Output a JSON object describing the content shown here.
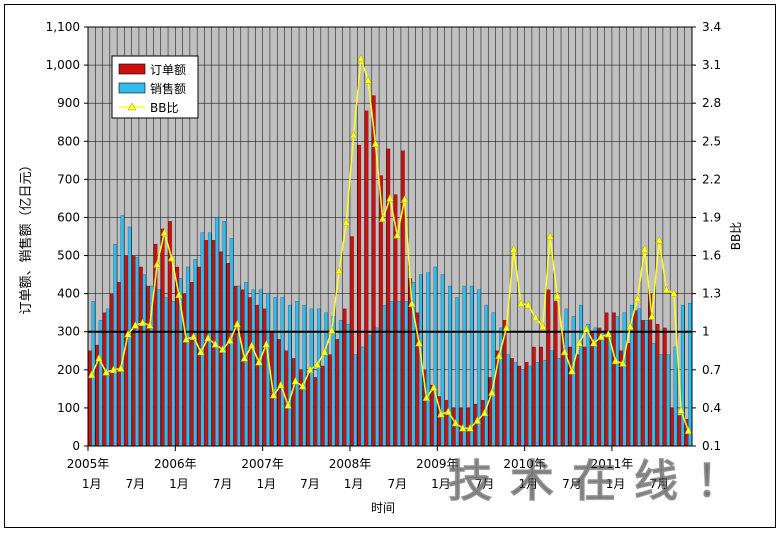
{
  "chart_data": {
    "type": "bar",
    "xlabel": "时间",
    "ylabel_left": "订单额、销售额（亿日元）",
    "ylabel_right": "BB比",
    "ylim_left": [
      0,
      1100
    ],
    "ylim_right": [
      0.1,
      3.4
    ],
    "yticks_left": [
      "0",
      "100",
      "200",
      "300",
      "400",
      "500",
      "600",
      "700",
      "800",
      "900",
      "1,000",
      "1,100"
    ],
    "yticks_right": [
      "0.1",
      "0.4",
      "0.7",
      "1",
      "1.3",
      "1.6",
      "1.9",
      "2.2",
      "2.5",
      "2.8",
      "3.1",
      "3.4"
    ],
    "grid": true,
    "legend_position": "top-left",
    "reference_line": {
      "axis": "right",
      "value": 1
    },
    "x_year_labels": [
      {
        "index": 0,
        "label": "2005年"
      },
      {
        "index": 12,
        "label": "2006年"
      },
      {
        "index": 24,
        "label": "2007年"
      },
      {
        "index": 36,
        "label": "2008年"
      },
      {
        "index": 48,
        "label": "2009年"
      },
      {
        "index": 60,
        "label": "2010年"
      },
      {
        "index": 72,
        "label": "2011年"
      }
    ],
    "x_month_labels": [
      {
        "index": 0,
        "label": "1月"
      },
      {
        "index": 6,
        "label": "7月"
      },
      {
        "index": 12,
        "label": "1月"
      },
      {
        "index": 18,
        "label": "7月"
      },
      {
        "index": 24,
        "label": "1月"
      },
      {
        "index": 30,
        "label": "7月"
      },
      {
        "index": 36,
        "label": "1月"
      },
      {
        "index": 42,
        "label": "7月"
      },
      {
        "index": 48,
        "label": "1月"
      },
      {
        "index": 54,
        "label": "7月"
      },
      {
        "index": 60,
        "label": "1月"
      },
      {
        "index": 66,
        "label": "7月"
      },
      {
        "index": 72,
        "label": "1月"
      },
      {
        "index": 78,
        "label": "7月"
      }
    ],
    "series": [
      {
        "name": "订单额",
        "axis": "left",
        "color": "#cc1111",
        "values": [
          250,
          265,
          350,
          400,
          430,
          500,
          500,
          470,
          420,
          530,
          570,
          590,
          470,
          400,
          430,
          470,
          540,
          540,
          510,
          480,
          420,
          410,
          390,
          370,
          360,
          300,
          280,
          250,
          230,
          200,
          190,
          180,
          210,
          240,
          280,
          360,
          550,
          790,
          880,
          920,
          710,
          780,
          660,
          775,
          440,
          350,
          200,
          160,
          130,
          120,
          100,
          100,
          100,
          110,
          120,
          180,
          250,
          330,
          230,
          210,
          220,
          260,
          260,
          410,
          380,
          300,
          260,
          240,
          260,
          300,
          310,
          350,
          350,
          250,
          270,
          355,
          330,
          400,
          320,
          310,
          100,
          80,
          70
        ]
      },
      {
        "name": "销售额",
        "axis": "left",
        "color": "#33bbee",
        "values": [
          380,
          330,
          360,
          530,
          605,
          575,
          495,
          450,
          420,
          410,
          390,
          380,
          440,
          470,
          490,
          560,
          560,
          600,
          590,
          545,
          420,
          430,
          410,
          410,
          400,
          390,
          390,
          370,
          380,
          370,
          360,
          360,
          350,
          340,
          330,
          320,
          240,
          260,
          290,
          310,
          370,
          380,
          380,
          380,
          430,
          450,
          455,
          470,
          450,
          420,
          390,
          420,
          420,
          410,
          370,
          350,
          310,
          240,
          220,
          200,
          210,
          220,
          225,
          250,
          230,
          360,
          340,
          370,
          320,
          310,
          300,
          300,
          340,
          350,
          370,
          360,
          330,
          270,
          240,
          240,
          260,
          370,
          375
        ]
      },
      {
        "name": "BB比",
        "axis": "right",
        "color": "#ffff22",
        "values": [
          0.66,
          0.79,
          0.68,
          0.7,
          0.71,
          0.98,
          1.05,
          1.07,
          1.05,
          1.53,
          1.78,
          1.58,
          1.29,
          0.94,
          0.96,
          0.84,
          0.95,
          0.9,
          0.86,
          0.93,
          1.06,
          0.79,
          0.89,
          0.76,
          0.9,
          0.5,
          0.58,
          0.42,
          0.61,
          0.57,
          0.7,
          0.74,
          0.84,
          1.01,
          1.48,
          1.86,
          2.55,
          3.15,
          2.98,
          2.48,
          1.89,
          2.05,
          1.76,
          2.04,
          1.22,
          0.91,
          0.48,
          0.56,
          0.35,
          0.37,
          0.28,
          0.24,
          0.24,
          0.3,
          0.36,
          0.52,
          0.81,
          1.03,
          1.65,
          1.22,
          1.21,
          1.11,
          1.04,
          1.75,
          1.28,
          0.84,
          0.69,
          0.91,
          1.02,
          0.91,
          0.96,
          0.98,
          0.77,
          0.75,
          1.04,
          1.26,
          1.65,
          1.12,
          1.72,
          1.33,
          1.3,
          0.38,
          0.22
        ]
      }
    ]
  },
  "watermark": "技术在线！"
}
